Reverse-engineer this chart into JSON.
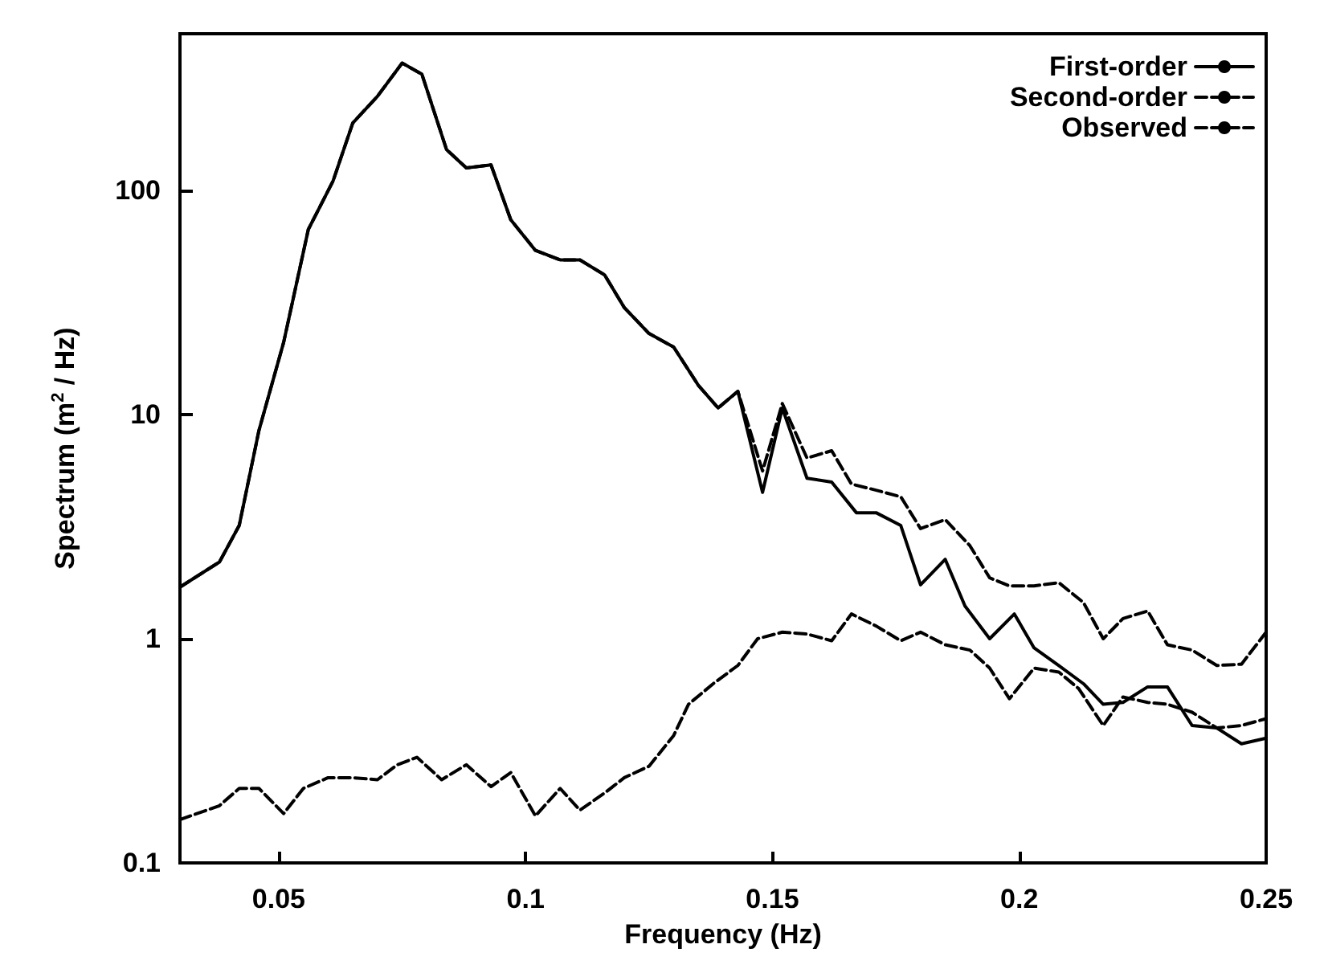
{
  "chart_data": {
    "type": "line",
    "xlabel": "Frequency (Hz)",
    "ylabel": "Spectrum (m$^{2}$ / Hz)",
    "log": "y",
    "xlim": [
      0.03,
      0.25
    ],
    "xticks": [
      0.05,
      0.1,
      0.15,
      0.2,
      0.25
    ],
    "ylim": [
      0.1,
      500
    ],
    "yticks": [
      0.1,
      1,
      10,
      100
    ],
    "grid": false,
    "legend": "top right",
    "marker": "none",
    "series": [
      {
        "name": "First-order",
        "color": "#000000",
        "line_style": "solid",
        "x": [
          0.03,
          0.038,
          0.042,
          0.046,
          0.051,
          0.056,
          0.061,
          0.065,
          0.07,
          0.075,
          0.079,
          0.084,
          0.088,
          0.093,
          0.097,
          0.102,
          0.107,
          0.111,
          0.116,
          0.12,
          0.125,
          0.13,
          0.135,
          0.139,
          0.143,
          0.148,
          0.152,
          0.157,
          0.162,
          0.167,
          0.171,
          0.176,
          0.18,
          0.185,
          0.189,
          0.194,
          0.199,
          0.203,
          0.208,
          0.213,
          0.217,
          0.221,
          0.226,
          0.23,
          0.235,
          0.24,
          0.245,
          0.25
        ],
        "values": [
          1.7,
          2.2,
          3.2,
          8.5,
          21,
          67,
          110,
          200,
          263,
          370,
          330,
          152,
          126,
          130,
          74,
          54,
          49,
          49,
          42,
          30,
          23,
          20,
          13.5,
          10.7,
          12.7,
          4.5,
          10.7,
          5.2,
          5.0,
          3.65,
          3.65,
          3.2,
          1.74,
          2.26,
          1.4,
          1.0,
          1.29,
          0.91,
          0.76,
          0.63,
          0.51,
          0.52,
          0.61,
          0.61,
          0.41,
          0.4,
          0.34,
          0.36
        ]
      },
      {
        "name": "Second-order",
        "color": "#000000",
        "line_style": "dashed",
        "x": [
          0.03,
          0.038,
          0.042,
          0.046,
          0.051,
          0.055,
          0.06,
          0.065,
          0.07,
          0.074,
          0.078,
          0.083,
          0.088,
          0.093,
          0.097,
          0.102,
          0.107,
          0.111,
          0.116,
          0.12,
          0.125,
          0.13,
          0.133,
          0.138,
          0.143,
          0.147,
          0.152,
          0.157,
          0.162,
          0.166,
          0.171,
          0.176,
          0.18,
          0.185,
          0.19,
          0.194,
          0.198,
          0.203,
          0.208,
          0.212,
          0.217,
          0.221,
          0.226,
          0.23,
          0.235,
          0.24,
          0.245,
          0.25
        ],
        "values": [
          0.156,
          0.18,
          0.215,
          0.215,
          0.166,
          0.215,
          0.24,
          0.24,
          0.235,
          0.274,
          0.296,
          0.235,
          0.274,
          0.219,
          0.253,
          0.162,
          0.215,
          0.172,
          0.205,
          0.24,
          0.27,
          0.37,
          0.51,
          0.63,
          0.76,
          1.0,
          1.07,
          1.05,
          0.98,
          1.29,
          1.14,
          0.98,
          1.07,
          0.94,
          0.89,
          0.74,
          0.54,
          0.74,
          0.71,
          0.6,
          0.41,
          0.55,
          0.52,
          0.51,
          0.47,
          0.4,
          0.41,
          0.44
        ]
      },
      {
        "name": "Observed",
        "color": "#000000",
        "line_style": "dashed",
        "x": [
          0.03,
          0.038,
          0.042,
          0.046,
          0.051,
          0.056,
          0.061,
          0.065,
          0.07,
          0.075,
          0.079,
          0.084,
          0.088,
          0.093,
          0.097,
          0.102,
          0.107,
          0.111,
          0.116,
          0.12,
          0.125,
          0.13,
          0.135,
          0.139,
          0.143,
          0.148,
          0.152,
          0.157,
          0.162,
          0.166,
          0.171,
          0.176,
          0.18,
          0.185,
          0.19,
          0.194,
          0.198,
          0.203,
          0.208,
          0.213,
          0.217,
          0.221,
          0.226,
          0.23,
          0.235,
          0.24,
          0.245,
          0.25
        ],
        "values": [
          1.7,
          2.2,
          3.2,
          8.5,
          21,
          67,
          110,
          200,
          263,
          370,
          330,
          152,
          126,
          130,
          74,
          54,
          49,
          49,
          42,
          30,
          23,
          20,
          13.5,
          10.7,
          12.7,
          5.6,
          11.2,
          6.4,
          6.9,
          4.9,
          4.6,
          4.3,
          3.1,
          3.4,
          2.6,
          1.87,
          1.72,
          1.72,
          1.78,
          1.45,
          1.0,
          1.23,
          1.33,
          0.94,
          0.89,
          0.76,
          0.77,
          1.07
        ]
      }
    ]
  }
}
